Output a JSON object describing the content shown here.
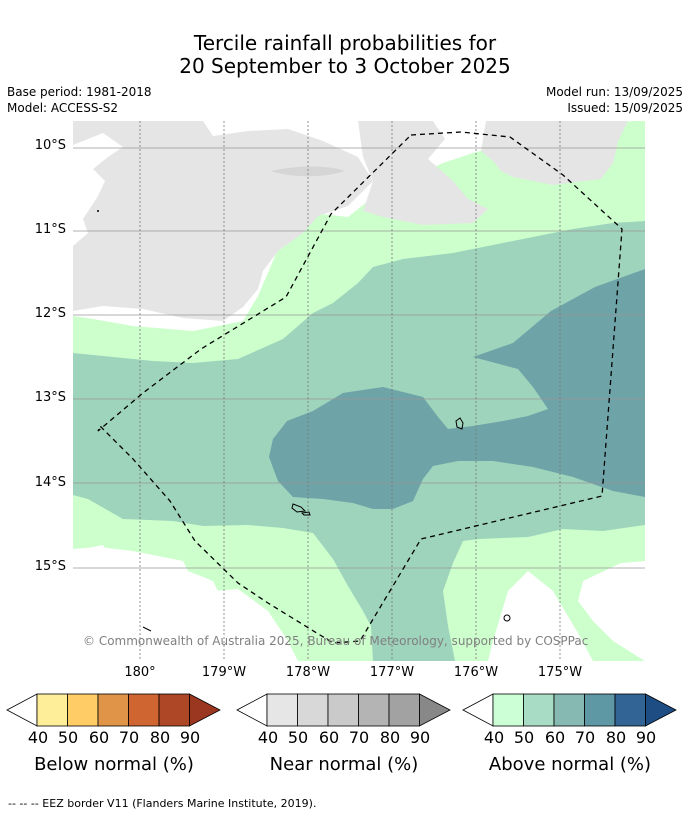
{
  "title": {
    "line1": "Tercile rainfall probabilities for",
    "line2": "20 September to 3 October 2025"
  },
  "meta": {
    "base_period": "Base period: 1981-2018",
    "model": "Model: ACCESS-S2",
    "model_run": "Model run: 13/09/2025",
    "issued": "Issued: 15/09/2025"
  },
  "map": {
    "copyright": "© Commonwealth of Australia 2025, Bureau of Meteorology, supported by COSPPac",
    "lat_labels": [
      "10°S",
      "11°S",
      "12°S",
      "13°S",
      "14°S",
      "15°S"
    ],
    "lon_labels": [
      "180°",
      "179°W",
      "178°W",
      "177°W",
      "176°W",
      "175°W"
    ],
    "colors": {
      "land_no_signal": "#e5e5e5",
      "above_50": "#ccffcc",
      "above_60": "#9ed3bc",
      "above_70": "#6ea3a8",
      "eez_line": "#000000"
    }
  },
  "legends": [
    {
      "id": "below",
      "title": "Below normal (%)",
      "ticks": [
        "40",
        "50",
        "60",
        "70",
        "80",
        "90"
      ],
      "colors": [
        "#ffffff",
        "#ffee99",
        "#ffcc66",
        "#e09448",
        "#cf6530",
        "#ad4726",
        "#9b3620"
      ]
    },
    {
      "id": "near",
      "title": "Near normal (%)",
      "ticks": [
        "40",
        "50",
        "60",
        "70",
        "80",
        "90"
      ],
      "colors": [
        "#ffffff",
        "#e6e6e6",
        "#d8d8d8",
        "#cacaca",
        "#b4b4b4",
        "#a2a2a2",
        "#888888"
      ]
    },
    {
      "id": "above",
      "title": "Above normal (%)",
      "ticks": [
        "40",
        "50",
        "60",
        "70",
        "80",
        "90"
      ],
      "colors": [
        "#ffffff",
        "#ccffd6",
        "#a8dcc4",
        "#86b9b1",
        "#5e98a4",
        "#326596",
        "#1d4d82"
      ]
    }
  ],
  "footer": "-- -- -- EEZ border V11 (Flanders Marine Institute, 2019)."
}
